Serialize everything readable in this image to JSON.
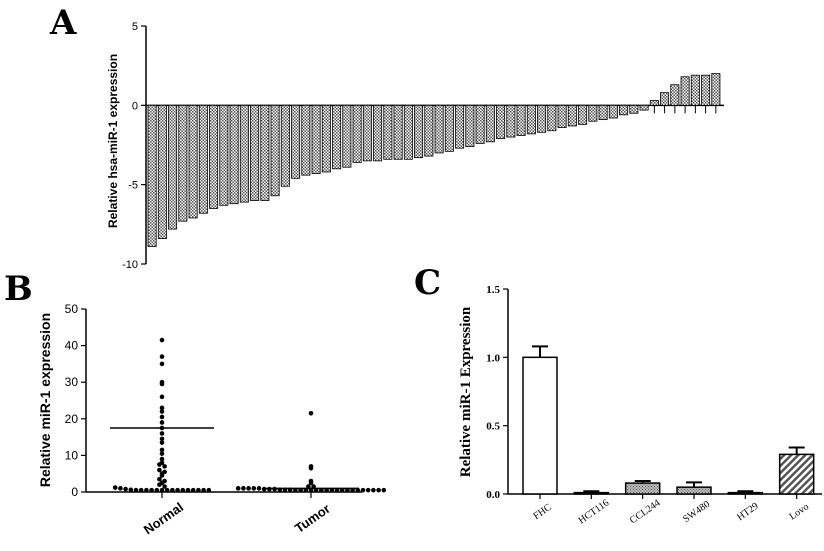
{
  "panels": {
    "a": "A",
    "b": "B",
    "c": "C"
  },
  "colors": {
    "ink": "#000000",
    "bar_fill": "#d8d8d8",
    "white": "#ffffff"
  },
  "chart_data": [
    {
      "panel": "A",
      "type": "bar",
      "title": "",
      "xlabel": "",
      "ylabel": "Relative hsa-miR-1 expression",
      "ylim": [
        -10,
        5
      ],
      "yticks": [
        "5",
        "0",
        "-5",
        "-10"
      ],
      "fill": "dotted gray",
      "values": [
        -8.9,
        -8.4,
        -7.8,
        -7.3,
        -7.1,
        -6.8,
        -6.5,
        -6.3,
        -6.2,
        -6.1,
        -6.0,
        -6.0,
        -5.7,
        -5.1,
        -4.6,
        -4.4,
        -4.3,
        -4.2,
        -4.0,
        -3.9,
        -3.6,
        -3.5,
        -3.5,
        -3.4,
        -3.4,
        -3.4,
        -3.3,
        -3.2,
        -3.0,
        -2.9,
        -2.7,
        -2.6,
        -2.4,
        -2.3,
        -2.1,
        -2.0,
        -1.9,
        -1.8,
        -1.7,
        -1.6,
        -1.4,
        -1.3,
        -1.2,
        -1.0,
        -0.9,
        -0.8,
        -0.6,
        -0.5,
        -0.3,
        0.3,
        0.8,
        1.3,
        1.8,
        1.9,
        1.9,
        2.0
      ]
    },
    {
      "panel": "B",
      "type": "scatter",
      "title": "",
      "xlabel": "",
      "ylabel": "Relative miR-1 expression",
      "ylim": [
        0,
        50
      ],
      "yticks": [
        "0",
        "10",
        "20",
        "30",
        "40",
        "50"
      ],
      "categories": [
        "Normal",
        "Tumor"
      ],
      "series": [
        {
          "category": "Normal",
          "mean": 17.5,
          "values": [
            41.5,
            37,
            35,
            30,
            29.5,
            26,
            23,
            22,
            20.5,
            19,
            17.5,
            16,
            14.5,
            13.5,
            11.5,
            10.5,
            9,
            8,
            7.5,
            7,
            6,
            5.5,
            5,
            4.5,
            3.5,
            3,
            2.5,
            2,
            1.5,
            1.2,
            1,
            0.8,
            0.6,
            0.5,
            0.5,
            0.5,
            0.5,
            0.5,
            0.5,
            0.5,
            0.5,
            0.5,
            0.5,
            0.5,
            0.5,
            0.5,
            0.5,
            0.5
          ]
        },
        {
          "category": "Tumor",
          "mean": 1.0,
          "values": [
            21.5,
            7,
            6.5,
            3,
            2.5,
            1.5,
            1.5,
            1,
            1,
            1,
            1,
            1,
            0.8,
            0.8,
            0.8,
            0.6,
            0.6,
            0.6,
            0.5,
            0.5,
            0.5,
            0.5,
            0.5,
            0.5,
            0.5,
            0.5,
            0.5,
            0.5,
            0.5,
            0.5,
            0.5,
            0.5,
            0.5,
            0.5,
            0.5,
            0.5
          ]
        }
      ]
    },
    {
      "panel": "C",
      "type": "bar",
      "title": "",
      "xlabel": "",
      "ylabel": "Relative miR-1 Expression",
      "ylim": [
        0,
        1.5
      ],
      "yticks": [
        "0.0",
        "0.5",
        "1.0",
        "1.5"
      ],
      "categories": [
        "FHC",
        "HCT116",
        "CCL244",
        "SW480",
        "HT29",
        "Lovo"
      ],
      "values": [
        1.0,
        0.01,
        0.08,
        0.05,
        0.01,
        0.29
      ],
      "errors": [
        0.08,
        0.01,
        0.015,
        0.035,
        0.01,
        0.05
      ],
      "fills": [
        "white",
        "dotted",
        "dotted",
        "dotted",
        "dotted",
        "hatched"
      ]
    }
  ]
}
